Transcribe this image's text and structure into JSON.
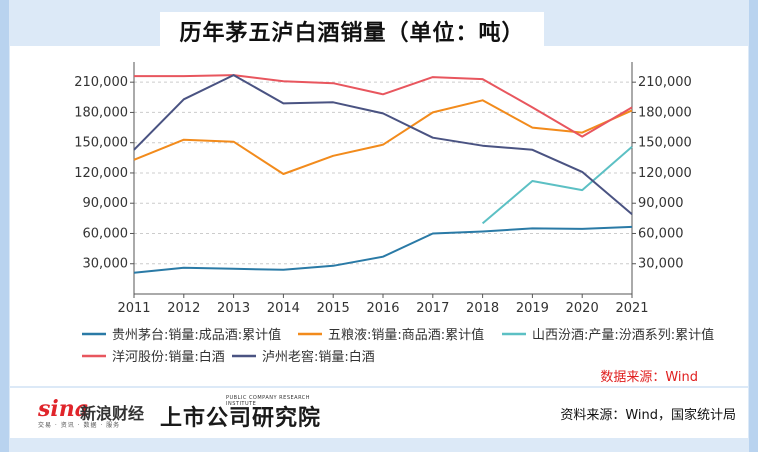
{
  "title": "历年茅五泸白酒销量（单位：吨）",
  "chart_data": {
    "type": "line",
    "title": "历年茅五泸白酒销量（单位：吨）",
    "x": [
      2011,
      2012,
      2013,
      2014,
      2015,
      2016,
      2017,
      2018,
      2019,
      2020,
      2021
    ],
    "ylim": [
      0,
      230000
    ],
    "yticks": [
      30000,
      60000,
      90000,
      120000,
      150000,
      180000,
      210000
    ],
    "ytick_labels": [
      "30,000",
      "60,000",
      "90,000",
      "120,000",
      "150,000",
      "180,000",
      "210,000"
    ],
    "grid": true,
    "series": [
      {
        "name": "贵州茅台:销量:成品酒:累计值",
        "color": "#2a7aa6",
        "values": [
          21000,
          26000,
          25000,
          24000,
          28000,
          37000,
          60000,
          62000,
          65000,
          64500,
          66500
        ]
      },
      {
        "name": "五粮液:销量:商品酒:累计值",
        "color": "#f28b1c",
        "values": [
          133000,
          153000,
          151000,
          119000,
          137000,
          148000,
          180000,
          192000,
          165000,
          160000,
          182000
        ]
      },
      {
        "name": "山西汾酒:产量:汾酒系列:累计值",
        "color": "#5cc0c4",
        "values": [
          null,
          null,
          null,
          null,
          null,
          null,
          null,
          70000,
          112000,
          103000,
          146000
        ]
      },
      {
        "name": "洋河股份:销量:白酒",
        "color": "#e8565e",
        "values": [
          216000,
          216000,
          217000,
          211000,
          209000,
          198000,
          215000,
          213000,
          185000,
          156000,
          185000
        ]
      },
      {
        "name": "泸州老窖:销量:白酒",
        "color": "#4a5382",
        "values": [
          143000,
          193000,
          217000,
          189000,
          190000,
          179000,
          155000,
          147000,
          143000,
          121000,
          79000
        ]
      }
    ],
    "source_note": "数据来源：Wind"
  },
  "footer": {
    "sina_mark": "sina",
    "sina_name": "新浪财经",
    "sina_sub": "交易 · 资讯 · 数据 · 服务",
    "research_name": "上市公司研究院",
    "research_sub": "PUBLIC COMPANY RESEARCH INSTITUTE",
    "source": "资料来源：Wind，国家统计局"
  }
}
